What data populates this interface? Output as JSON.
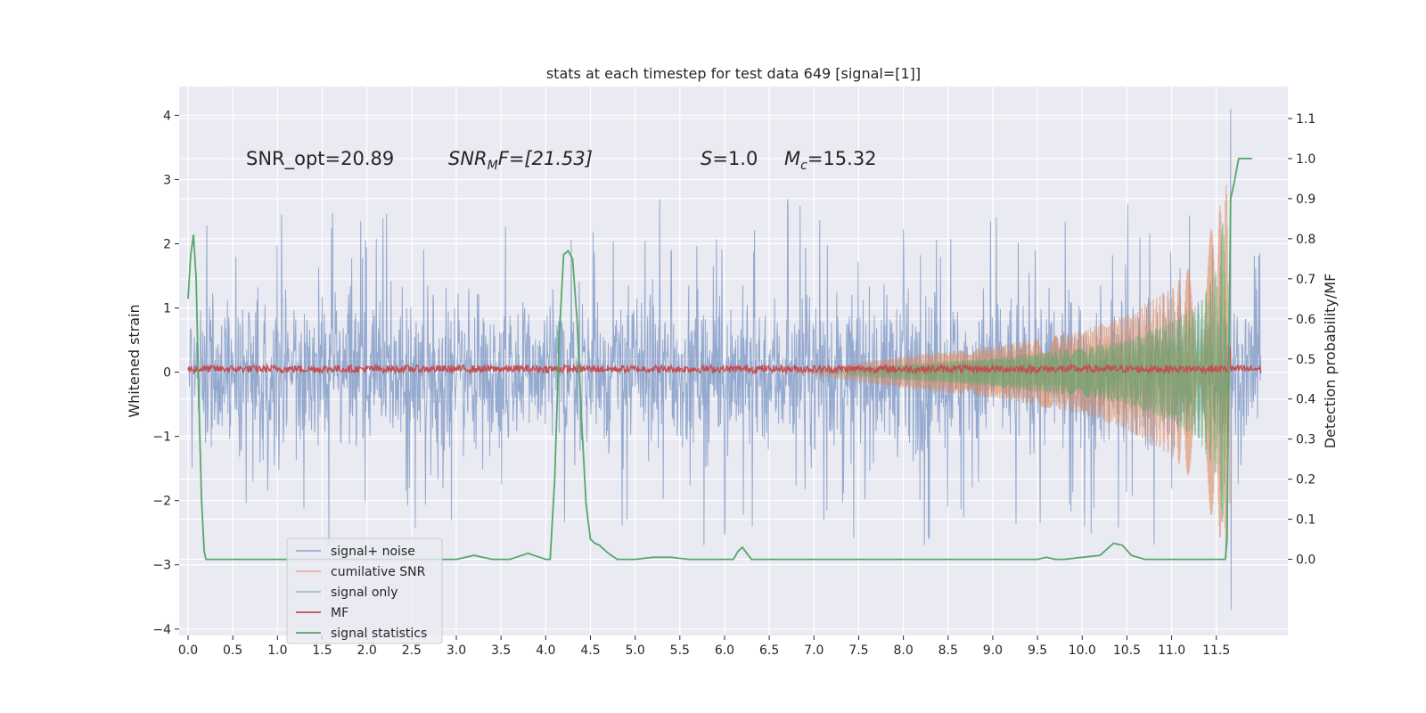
{
  "chart_data": {
    "type": "line",
    "title": "stats at each timestep for test data 649 [signal=[1]]",
    "ylabel": "Whitened strain",
    "y2label": "Detection probability/MF",
    "xlim": [
      -0.1,
      12.3
    ],
    "ylim": [
      -4.1,
      4.45
    ],
    "y2lim": [
      -0.19,
      1.18
    ],
    "x_ticks": [
      "0.0",
      "0.5",
      "1.0",
      "1.5",
      "2.0",
      "2.5",
      "3.0",
      "3.5",
      "4.0",
      "4.5",
      "5.0",
      "5.5",
      "6.0",
      "6.5",
      "7.0",
      "7.5",
      "8.0",
      "8.5",
      "9.0",
      "9.5",
      "10.0",
      "10.5",
      "11.0",
      "11.5"
    ],
    "y_ticks": [
      "4",
      "3",
      "2",
      "1",
      "0",
      "−1",
      "−2",
      "−3",
      "−4"
    ],
    "y2_ticks": [
      "1.1",
      "1.0",
      "0.9",
      "0.8",
      "0.7",
      "0.6",
      "0.5",
      "0.4",
      "0.3",
      "0.2",
      "0.1",
      "0.0"
    ],
    "grid": true,
    "legend_position": "lower-left",
    "annotations": [
      "SNR_opt=20.89",
      "SNR",
      "M",
      "F=[21.53]",
      "S",
      "=1.0",
      "M",
      "c",
      "=15.32"
    ],
    "series": [
      {
        "name": "signal+ noise",
        "color": "#4c72b0",
        "description": "whitened noisy strain, amplitude ~1.5 (peaks to ~2.7), spike to 4.1 near t=11.65"
      },
      {
        "name": "cumilative SNR",
        "color": "#dd8452",
        "envelope_x": [
          6.8,
          8.0,
          9.0,
          10.0,
          10.5,
          11.0,
          11.3,
          11.5,
          11.65
        ],
        "envelope_y": [
          0.0,
          0.25,
          0.4,
          0.65,
          0.9,
          1.3,
          1.8,
          2.4,
          3.1
        ]
      },
      {
        "name": "signal only",
        "color": "#55a868",
        "envelope_x": [
          7.0,
          8.0,
          9.0,
          10.0,
          10.5,
          11.0,
          11.3,
          11.5,
          11.62
        ],
        "envelope_y": [
          0.0,
          0.12,
          0.22,
          0.38,
          0.5,
          0.78,
          1.05,
          1.6,
          2.9
        ]
      },
      {
        "name": "MF",
        "color": "#c44e52",
        "description": "matched filter output near 0.05, spike to ~0.4 at t=11.65"
      },
      {
        "name": "signal statistics",
        "color": "#55a868",
        "axis": "right",
        "x": [
          0.0,
          0.03,
          0.06,
          0.09,
          0.12,
          0.15,
          0.18,
          0.2,
          0.3,
          0.5,
          1.0,
          1.5,
          2.0,
          2.5,
          3.0,
          3.2,
          3.4,
          3.6,
          3.8,
          4.0,
          4.05,
          4.1,
          4.15,
          4.2,
          4.25,
          4.3,
          4.35,
          4.4,
          4.45,
          4.5,
          4.55,
          4.6,
          4.7,
          4.8,
          5.0,
          5.2,
          5.4,
          5.6,
          5.8,
          6.0,
          6.1,
          6.15,
          6.2,
          6.25,
          6.3,
          6.4,
          6.6,
          7.0,
          7.5,
          8.0,
          8.5,
          9.0,
          9.5,
          9.6,
          9.7,
          9.8,
          10.0,
          10.2,
          10.35,
          10.45,
          10.55,
          10.7,
          11.0,
          11.3,
          11.5,
          11.58,
          11.6,
          11.62,
          11.64,
          11.66,
          11.7,
          11.75,
          11.9
        ],
        "y": [
          0.65,
          0.76,
          0.81,
          0.7,
          0.4,
          0.15,
          0.02,
          0.0,
          0.0,
          0.0,
          0.0,
          0.0,
          0.0,
          0.0,
          0.0,
          0.01,
          0.0,
          0.0,
          0.015,
          0.0,
          0.0,
          0.2,
          0.55,
          0.76,
          0.77,
          0.75,
          0.6,
          0.35,
          0.14,
          0.05,
          0.04,
          0.035,
          0.015,
          0.0,
          0.0,
          0.005,
          0.005,
          0.0,
          0.0,
          0.0,
          0.0,
          0.02,
          0.03,
          0.015,
          0.0,
          0.0,
          0.0,
          0.0,
          0.0,
          0.0,
          0.0,
          0.0,
          0.0,
          0.005,
          0.0,
          0.0,
          0.005,
          0.01,
          0.04,
          0.035,
          0.01,
          0.0,
          0.0,
          0.0,
          0.0,
          0.0,
          0.0,
          0.05,
          0.5,
          0.9,
          0.94,
          1.0,
          1.0
        ]
      }
    ]
  }
}
